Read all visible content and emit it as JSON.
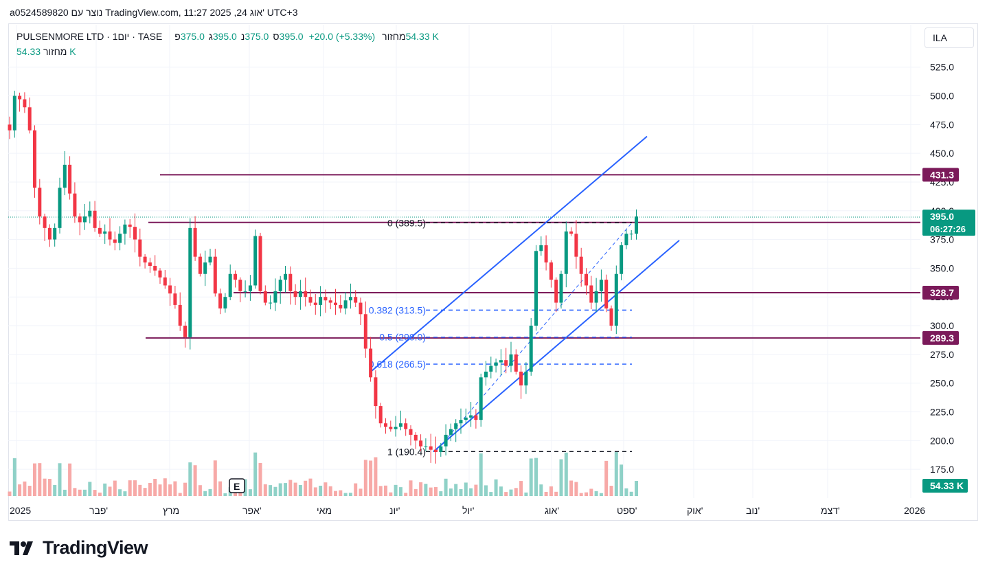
{
  "header": {
    "created_text": "a0524589820 נוצר עם TradingView.com, 11:27 2025 ,24 אוג' UTC+3"
  },
  "legend": {
    "symbol": "PULSENMORE LTD · 1יום · TASE",
    "open_label": "פ",
    "open": "375.0",
    "high_label": "ג",
    "high": "395.0",
    "low_label": "נ",
    "low": "375.0",
    "close_label": "ס",
    "close": "395.0",
    "change": "+20.0 (+5.33%)",
    "volume_label": "מחזור",
    "volume": "54.33 K"
  },
  "volume_legend": {
    "label": "מחזור",
    "value": "54.33 K"
  },
  "currency": "ILA",
  "brand": "TradingView",
  "colors": {
    "up": "#089981",
    "down": "#f23645",
    "up_volume": "#8fd1c7",
    "down_volume": "#f7a9a7",
    "level_line": "#7b1a5a",
    "channel": "#2962ff",
    "fib_blue": "#2962ff",
    "price_badge": "#089981",
    "grid": "#f0f3fa"
  },
  "chart_data": {
    "type": "candlestick",
    "symbol": "PULSENMORE LTD",
    "exchange": "TASE",
    "interval": "1D",
    "ylim": [
      165,
      540
    ],
    "y_ticks": [
      "175.0",
      "200.0",
      "225.0",
      "250.0",
      "275.0",
      "300.0",
      "325.0",
      "350.0",
      "375.0",
      "400.0",
      "425.0",
      "450.0",
      "475.0",
      "500.0",
      "525.0"
    ],
    "x_ticks": [
      "2025",
      "פבר'",
      "מרץ",
      "אפר'",
      "מאי",
      "יונ'",
      "יול'",
      "אוג'",
      "ספט'",
      "אוק'",
      "נוב'",
      "דצמ'",
      "2026"
    ],
    "horizontal_levels": [
      {
        "value": 431.3,
        "label": "431.3"
      },
      {
        "value": 389.8,
        "label": "389.8"
      },
      {
        "value": 328.7,
        "label": "328.7"
      },
      {
        "value": 289.3,
        "label": "289.3"
      }
    ],
    "fibonacci": [
      {
        "label": "0 (389.5)",
        "value": 389.5
      },
      {
        "label": "0.382 (313.5)",
        "value": 313.5
      },
      {
        "label": "0.5 (290.0)",
        "value": 290.0
      },
      {
        "label": "0.618 (266.5)",
        "value": 266.5
      },
      {
        "label": "1 (190.4)",
        "value": 190.4
      }
    ],
    "last_price": {
      "value": 395.0,
      "label": "395.0",
      "countdown": "06:27:26"
    },
    "volume_badge": "54.33 K",
    "event_marker": "E",
    "closes": [
      470,
      500,
      497,
      490,
      470,
      420,
      395,
      385,
      375,
      385,
      420,
      440,
      415,
      395,
      390,
      395,
      400,
      385,
      380,
      382,
      375,
      372,
      380,
      388,
      386,
      375,
      360,
      355,
      352,
      348,
      342,
      335,
      328,
      318,
      300,
      290,
      385,
      360,
      345,
      355,
      360,
      328,
      315,
      325,
      345,
      340,
      330,
      330,
      335,
      378,
      330,
      320,
      320,
      330,
      340,
      345,
      330,
      325,
      330,
      325,
      320,
      318,
      325,
      322,
      320,
      318,
      315,
      322,
      325,
      320,
      310,
      280,
      255,
      230,
      215,
      212,
      210,
      212,
      215,
      210,
      205,
      200,
      195,
      195,
      192,
      190,
      195,
      205,
      210,
      215,
      218,
      220,
      222,
      218,
      255,
      260,
      265,
      268,
      270,
      265,
      275,
      260,
      248,
      260,
      300,
      365,
      370,
      355,
      340,
      320,
      345,
      382,
      380,
      360,
      345,
      335,
      320,
      330,
      340,
      315,
      300,
      345,
      370,
      380,
      380,
      395
    ]
  }
}
